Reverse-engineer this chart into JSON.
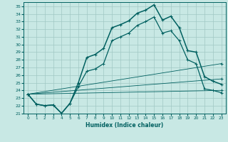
{
  "xlabel": "Humidex (Indice chaleur)",
  "xlim": [
    -0.5,
    23.5
  ],
  "ylim": [
    21,
    35.5
  ],
  "yticks": [
    21,
    22,
    23,
    24,
    25,
    26,
    27,
    28,
    29,
    30,
    31,
    32,
    33,
    34,
    35
  ],
  "xticks": [
    0,
    1,
    2,
    3,
    4,
    5,
    6,
    7,
    8,
    9,
    10,
    11,
    12,
    13,
    14,
    15,
    16,
    17,
    18,
    19,
    20,
    21,
    22,
    23
  ],
  "bg_color": "#c8e8e4",
  "grid_color": "#a0c8c4",
  "line_color": "#006060",
  "main_line": {
    "x": [
      0,
      1,
      2,
      3,
      4,
      5,
      6,
      7,
      8,
      9,
      10,
      11,
      12,
      13,
      14,
      15,
      16,
      17,
      18,
      19,
      20,
      21,
      22,
      23
    ],
    "y": [
      23.5,
      22.2,
      22.0,
      22.1,
      21.0,
      22.3,
      25.0,
      28.3,
      28.7,
      29.5,
      32.2,
      32.6,
      33.1,
      34.1,
      34.5,
      35.2,
      33.2,
      33.7,
      32.2,
      29.2,
      29.0,
      25.8,
      25.2,
      24.8
    ]
  },
  "line2": {
    "x": [
      0,
      1,
      2,
      3,
      4,
      5,
      6,
      7,
      8,
      9,
      10,
      11,
      12,
      13,
      14,
      15,
      16,
      17,
      18,
      19,
      20,
      21,
      22,
      23
    ],
    "y": [
      23.5,
      22.2,
      22.0,
      22.1,
      21.0,
      22.3,
      24.5,
      26.5,
      26.8,
      27.5,
      30.5,
      31.0,
      31.5,
      32.5,
      33.0,
      33.6,
      31.5,
      31.8,
      30.5,
      28.0,
      27.5,
      24.2,
      24.0,
      23.7
    ]
  },
  "line3": {
    "x": [
      0,
      23
    ],
    "y": [
      23.5,
      27.5
    ]
  },
  "line4": {
    "x": [
      0,
      23
    ],
    "y": [
      23.5,
      25.5
    ]
  },
  "line5": {
    "x": [
      0,
      23
    ],
    "y": [
      23.5,
      24.0
    ]
  }
}
